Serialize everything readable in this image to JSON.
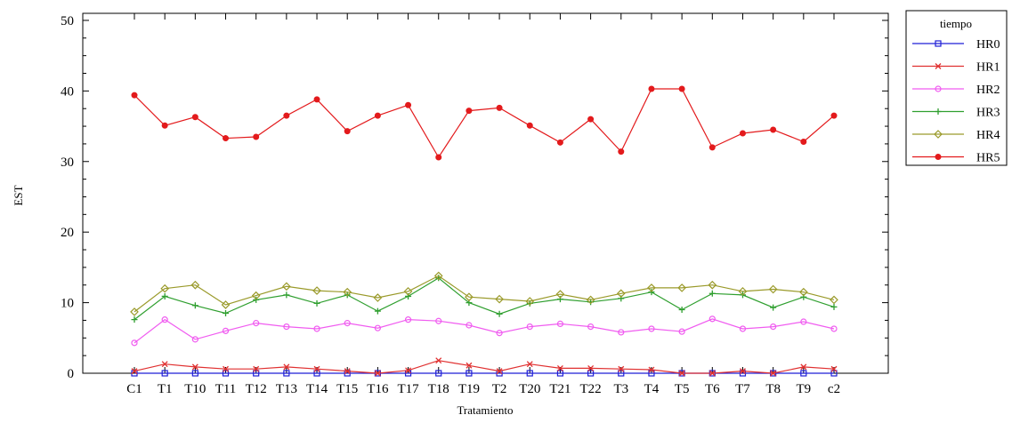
{
  "chart_data": {
    "type": "line",
    "title": "",
    "xlabel": "Tratamiento",
    "ylabel": "EST",
    "ylim": [
      0,
      51
    ],
    "yticks": [
      0,
      10,
      20,
      30,
      40,
      50
    ],
    "grid": false,
    "legend": {
      "title": "tiempo",
      "placement": "right"
    },
    "categories": [
      "C1",
      "T1",
      "T10",
      "T11",
      "T12",
      "T13",
      "T14",
      "T15",
      "T16",
      "T17",
      "T18",
      "T19",
      "T2",
      "T20",
      "T21",
      "T22",
      "T3",
      "T4",
      "T5",
      "T6",
      "T7",
      "T8",
      "T9",
      "c2"
    ],
    "series": [
      {
        "name": "HR0",
        "color": "#1f1fd6",
        "marker": "square",
        "values": [
          0,
          0,
          0,
          0,
          0,
          0,
          0,
          0,
          0,
          0,
          0,
          0,
          0,
          0,
          0,
          0,
          0,
          0,
          0,
          0,
          0,
          0,
          0,
          0
        ]
      },
      {
        "name": "HR1",
        "color": "#e03030",
        "marker": "x",
        "values": [
          0.3,
          1.3,
          0.9,
          0.6,
          0.6,
          0.9,
          0.6,
          0.3,
          0,
          0.4,
          1.8,
          1.1,
          0.3,
          1.3,
          0.7,
          0.7,
          0.6,
          0.5,
          0,
          0,
          0.3,
          0,
          0.9,
          0.6
        ]
      },
      {
        "name": "HR2",
        "color": "#f05cf0",
        "marker": "circle",
        "values": [
          4.3,
          7.6,
          4.8,
          6.0,
          7.1,
          6.6,
          6.3,
          7.1,
          6.4,
          7.6,
          7.4,
          6.8,
          5.7,
          6.6,
          7.0,
          6.6,
          5.8,
          6.3,
          5.9,
          7.7,
          6.3,
          6.6,
          7.3,
          6.3
        ]
      },
      {
        "name": "HR3",
        "color": "#2f9f2f",
        "marker": "plus",
        "values": [
          7.6,
          10.9,
          9.6,
          8.5,
          10.4,
          11.1,
          9.9,
          11.1,
          8.8,
          10.9,
          13.5,
          10.0,
          8.4,
          9.9,
          10.5,
          10.1,
          10.6,
          11.5,
          9.0,
          11.3,
          11.1,
          9.3,
          10.8,
          9.4
        ]
      },
      {
        "name": "HR4",
        "color": "#9a9a2a",
        "marker": "diamond",
        "values": [
          8.7,
          12.0,
          12.5,
          9.7,
          11.0,
          12.3,
          11.7,
          11.5,
          10.7,
          11.6,
          13.8,
          10.8,
          10.5,
          10.2,
          11.2,
          10.4,
          11.3,
          12.1,
          12.1,
          12.5,
          11.6,
          11.9,
          11.5,
          10.4
        ]
      },
      {
        "name": "HR5",
        "color": "#e31a1c",
        "marker": "dot",
        "values": [
          39.4,
          35.1,
          36.3,
          33.3,
          33.5,
          36.5,
          38.8,
          34.3,
          36.5,
          38.0,
          30.6,
          37.2,
          37.6,
          35.1,
          32.7,
          36.0,
          31.4,
          40.3,
          40.3,
          32.0,
          34.0,
          34.5,
          32.8,
          36.5
        ]
      }
    ]
  }
}
